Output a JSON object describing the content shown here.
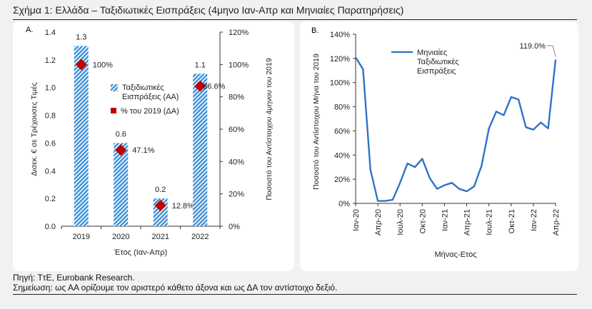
{
  "figure": {
    "title": "Σχήμα 1: Ελλάδα – Ταξιδιωτικές Εισπράξεις (4μηνο Ιαν-Απρ και Μηνιαίες Παρατηρήσεις)",
    "source": "Πηγή: ΤτΕ, Eurobank Research.",
    "note": "Σημείωση: ως ΑΑ ορίζουμε τον αριστερό κάθετο άξονα και ως ΔΑ τον αντίστοιχο δεξιό."
  },
  "colors": {
    "bar": "#3d8fd6",
    "marker": "#c00000",
    "line": "#2f73c5",
    "text": "#222222"
  },
  "chart_data": [
    {
      "type": "bar",
      "panel_label": "A.",
      "categories": [
        "2019",
        "2020",
        "2021",
        "2022"
      ],
      "series": [
        {
          "name": "Ταξιδιωτικές Εισπράξεις (ΑΑ)",
          "axis": "left",
          "values": [
            1.3,
            0.6,
            0.2,
            1.1
          ],
          "labels": [
            "1.3",
            "0.6",
            "0.2",
            "1.1"
          ]
        },
        {
          "name": "% του 2019 (ΔΑ)",
          "axis": "right",
          "values": [
            100,
            47.1,
            12.8,
            86.6
          ],
          "labels": [
            "100%",
            "47.1%",
            "12.8%",
            "86.6%"
          ]
        }
      ],
      "legend": [
        "Ταξιδιωτικές",
        "Εισπράξεις (ΑΑ)",
        "% του 2019 (ΔΑ)"
      ],
      "xlabel": "Έτος (Ιαν-Απρ)",
      "ylabel": "Δισεκ. € σε Τρέχουσες Τιμές",
      "ylabel_right": "Ποσοστό του Αντίστοιχου 4μηνου του 2019",
      "ylim": [
        0,
        1.4
      ],
      "yticks": [
        "0.0",
        "0.2",
        "0.4",
        "0.6",
        "0.8",
        "1.0",
        "1.2",
        "1.4"
      ],
      "ylim_right": [
        0,
        120
      ],
      "yticks_right": [
        "0%",
        "20%",
        "40%",
        "60%",
        "80%",
        "100%",
        "120%"
      ]
    },
    {
      "type": "line",
      "panel_label": "B.",
      "series": [
        {
          "name": "Μηνιαίες Ταξιδιωτικές Εισπράξεις",
          "values": [
            121,
            111,
            28,
            2,
            2,
            3,
            17,
            33,
            30,
            37,
            21,
            12,
            15,
            17,
            12,
            10,
            14,
            31,
            62,
            76,
            73,
            88,
            86,
            63,
            61,
            67,
            62,
            119
          ]
        }
      ],
      "legend": [
        "Μηνιαίες",
        "Ταξιδιωτικές",
        "Εισπράξεις"
      ],
      "annotation": "119.0%",
      "xtick_labels": [
        "Ιαν-20",
        "Απρ-20",
        "Ιουλ-20",
        "Οκτ-20",
        "Ιαν-21",
        "Απρ-21",
        "Ιουλ-21",
        "Οκτ-21",
        "Ιαν-22",
        "Απρ-22"
      ],
      "xlabel": "Μήνας-Ετος",
      "ylabel": "Ποσοστό του Αντίστοιχου Μήνα του 2019",
      "ylim": [
        0,
        140
      ],
      "yticks": [
        "0%",
        "20%",
        "40%",
        "60%",
        "80%",
        "100%",
        "120%",
        "140%"
      ]
    }
  ]
}
